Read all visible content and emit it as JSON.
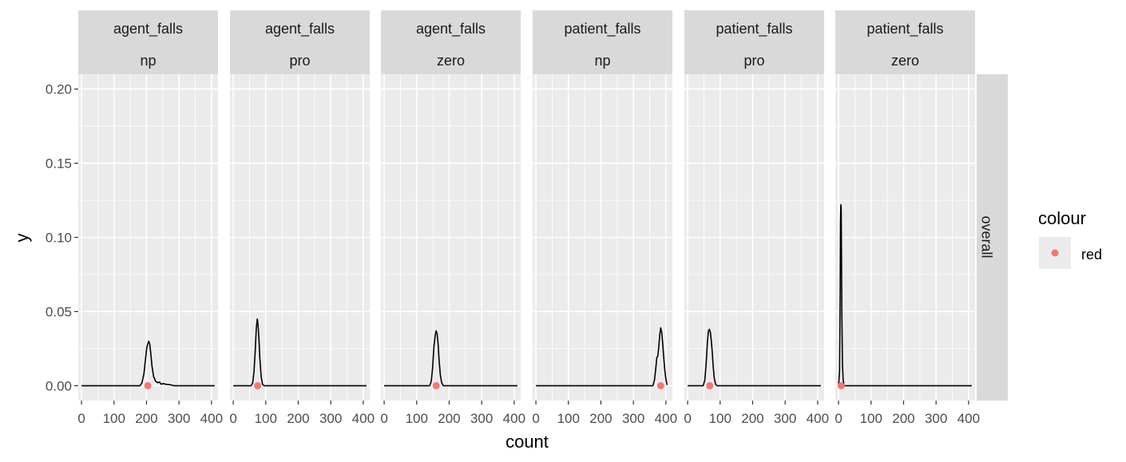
{
  "chart_data": {
    "type": "line",
    "xlabel": "count",
    "ylabel": "y",
    "xlim": [
      -10,
      420
    ],
    "ylim": [
      -0.01,
      0.21
    ],
    "x_ticks": [
      0,
      100,
      200,
      300,
      400
    ],
    "x_tick_labels": [
      "0",
      "100",
      "200",
      "300",
      "400"
    ],
    "y_ticks": [
      0.0,
      0.05,
      0.1,
      0.15,
      0.2
    ],
    "y_tick_labels": [
      "0.00",
      "0.05",
      "0.10",
      "0.15",
      "0.20"
    ],
    "grid": true,
    "row_strip": "overall",
    "legend": {
      "title": "colour",
      "position": "right",
      "items": [
        {
          "label": "red",
          "color": "#F8766D"
        }
      ]
    },
    "colors": {
      "panel_bg": "#EBEBEB",
      "grid": "#FFFFFF",
      "strip_bg": "#D9D9D9",
      "line": "#000000",
      "point": "#F8766D"
    },
    "panels": [
      {
        "strip_top": "agent_falls",
        "strip_bottom": "np",
        "point": {
          "x": 204,
          "y": 0.0
        },
        "curve": [
          [
            0,
            0
          ],
          [
            180,
            0
          ],
          [
            186,
            0.002
          ],
          [
            192,
            0.008
          ],
          [
            197,
            0.018
          ],
          [
            201,
            0.026
          ],
          [
            205,
            0.029
          ],
          [
            207,
            0.03
          ],
          [
            210,
            0.028
          ],
          [
            213,
            0.022
          ],
          [
            217,
            0.013
          ],
          [
            222,
            0.006
          ],
          [
            228,
            0.003
          ],
          [
            235,
            0.002
          ],
          [
            240,
            0.0025
          ],
          [
            245,
            0.001
          ],
          [
            252,
            0.0015
          ],
          [
            258,
            0.001
          ],
          [
            270,
            0.0008
          ],
          [
            285,
            0
          ],
          [
            410,
            0
          ]
        ]
      },
      {
        "strip_top": "agent_falls",
        "strip_bottom": "pro",
        "point": {
          "x": 75,
          "y": 0.0
        },
        "curve": [
          [
            0,
            0
          ],
          [
            55,
            0
          ],
          [
            60,
            0.002
          ],
          [
            64,
            0.01
          ],
          [
            68,
            0.025
          ],
          [
            71,
            0.039
          ],
          [
            74,
            0.045
          ],
          [
            76,
            0.042
          ],
          [
            79,
            0.032
          ],
          [
            82,
            0.018
          ],
          [
            86,
            0.006
          ],
          [
            90,
            0.001
          ],
          [
            95,
            0
          ],
          [
            410,
            0
          ]
        ]
      },
      {
        "strip_top": "agent_falls",
        "strip_bottom": "zero",
        "point": {
          "x": 160,
          "y": 0.0
        },
        "curve": [
          [
            0,
            0
          ],
          [
            140,
            0
          ],
          [
            145,
            0.003
          ],
          [
            149,
            0.012
          ],
          [
            153,
            0.026
          ],
          [
            157,
            0.034
          ],
          [
            160,
            0.037
          ],
          [
            163,
            0.035
          ],
          [
            166,
            0.028
          ],
          [
            169,
            0.017
          ],
          [
            173,
            0.007
          ],
          [
            177,
            0.002
          ],
          [
            182,
            0
          ],
          [
            410,
            0
          ]
        ]
      },
      {
        "strip_top": "patient_falls",
        "strip_bottom": "np",
        "point": {
          "x": 384,
          "y": 0.0
        },
        "curve": [
          [
            0,
            0
          ],
          [
            360,
            0
          ],
          [
            365,
            0.004
          ],
          [
            369,
            0.012
          ],
          [
            372,
            0.019
          ],
          [
            375,
            0.02
          ],
          [
            378,
            0.026
          ],
          [
            381,
            0.034
          ],
          [
            384,
            0.039
          ],
          [
            387,
            0.036
          ],
          [
            390,
            0.029
          ],
          [
            393,
            0.02
          ],
          [
            396,
            0.012
          ],
          [
            399,
            0.006
          ],
          [
            402,
            0.002
          ],
          [
            404,
            0.0005
          ]
        ]
      },
      {
        "strip_top": "patient_falls",
        "strip_bottom": "pro",
        "point": {
          "x": 68,
          "y": 0.0
        },
        "curve": [
          [
            0,
            0
          ],
          [
            48,
            0
          ],
          [
            53,
            0.004
          ],
          [
            57,
            0.015
          ],
          [
            61,
            0.03
          ],
          [
            64,
            0.037
          ],
          [
            67,
            0.038
          ],
          [
            70,
            0.036
          ],
          [
            73,
            0.03
          ],
          [
            76,
            0.022
          ],
          [
            79,
            0.012
          ],
          [
            82,
            0.005
          ],
          [
            86,
            0.001
          ],
          [
            90,
            0
          ],
          [
            410,
            0
          ]
        ]
      },
      {
        "strip_top": "patient_falls",
        "strip_bottom": "zero",
        "point": {
          "x": 8,
          "y": 0.0
        },
        "curve": [
          [
            0,
            0
          ],
          [
            3,
            0.01
          ],
          [
            5,
            0.065
          ],
          [
            6,
            0.11
          ],
          [
            7,
            0.122
          ],
          [
            8,
            0.12
          ],
          [
            9,
            0.09
          ],
          [
            10,
            0.05
          ],
          [
            12,
            0.015
          ],
          [
            14,
            0.004
          ],
          [
            17,
            0
          ],
          [
            410,
            0
          ]
        ]
      }
    ]
  }
}
